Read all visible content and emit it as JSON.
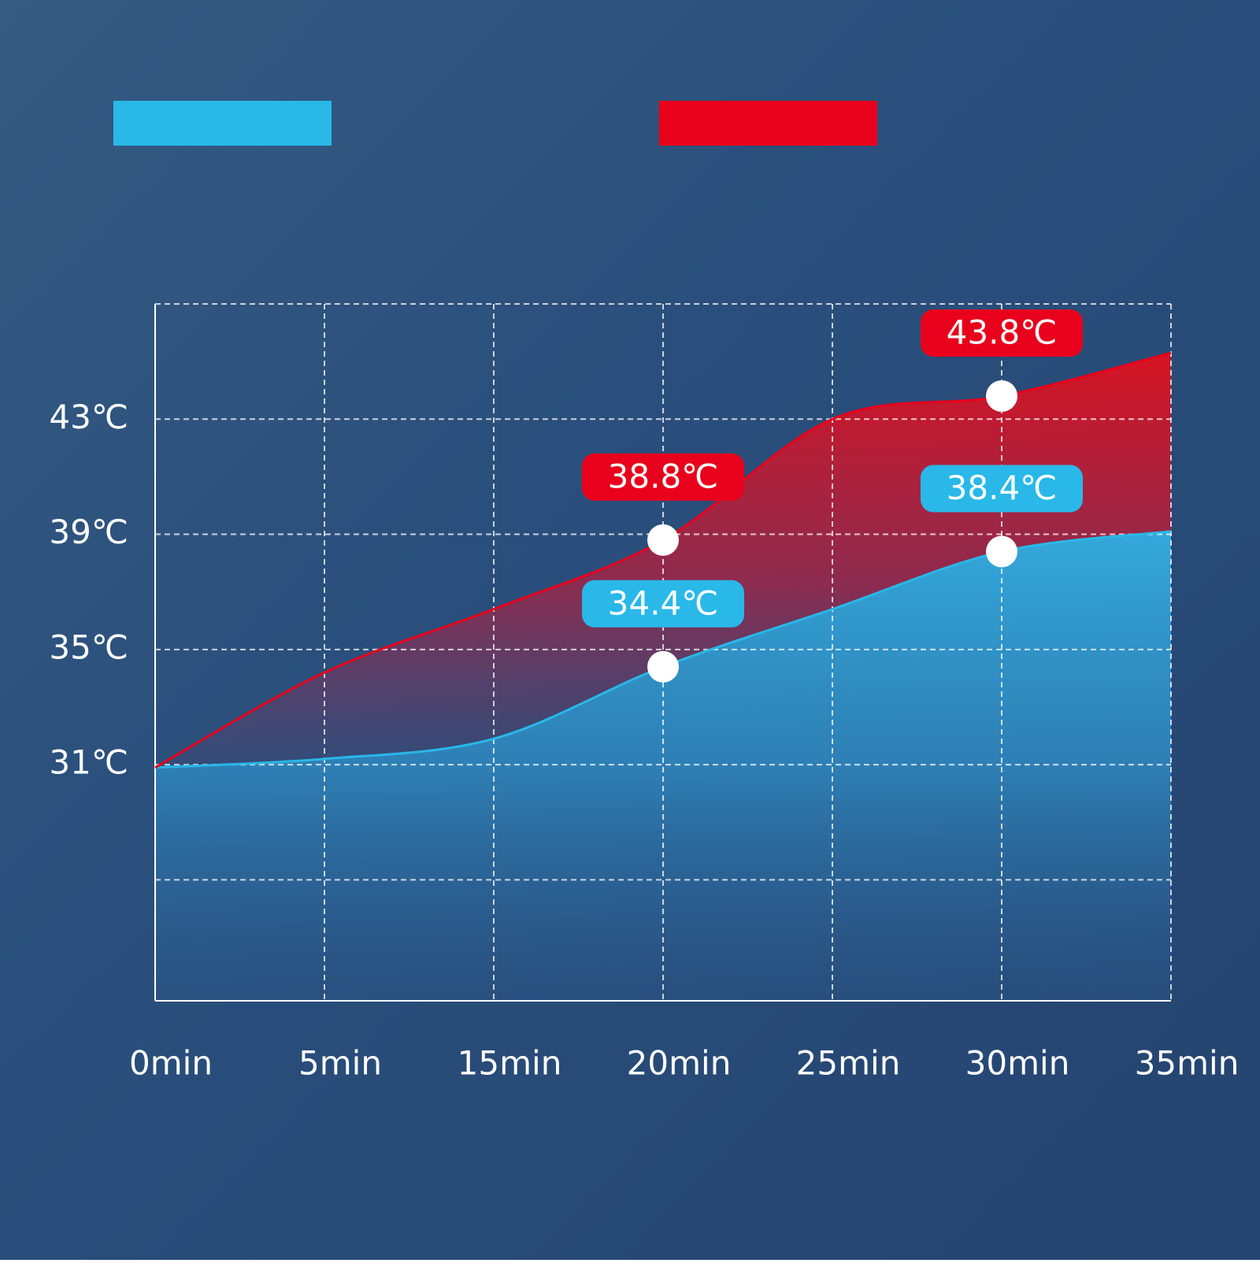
{
  "chart_data": {
    "type": "area",
    "categories": [
      "0min",
      "5min",
      "15min",
      "20min",
      "25min",
      "30min",
      "35min"
    ],
    "series": [
      {
        "color": "#29b8e8",
        "values": [
          30.9,
          31.2,
          31.9,
          34.4,
          36.4,
          38.4,
          39.1
        ],
        "value_labels": [
          null,
          null,
          null,
          "34.4℃",
          null,
          "38.4℃",
          null
        ]
      },
      {
        "color": "#e8001c",
        "values": [
          30.9,
          34.2,
          36.4,
          38.8,
          43,
          43.8,
          45.3
        ],
        "value_labels": [
          null,
          null,
          null,
          "38.8℃",
          null,
          "43.8℃",
          null
        ]
      }
    ],
    "ylim": [
      22.8,
      47
    ],
    "yticks": [
      {
        "value": 31,
        "label": "31℃"
      },
      {
        "value": 35,
        "label": "35℃"
      },
      {
        "value": 39,
        "label": "39℃"
      },
      {
        "value": 43,
        "label": "43℃"
      }
    ],
    "ygrid": [
      27,
      47
    ],
    "grid": true
  }
}
